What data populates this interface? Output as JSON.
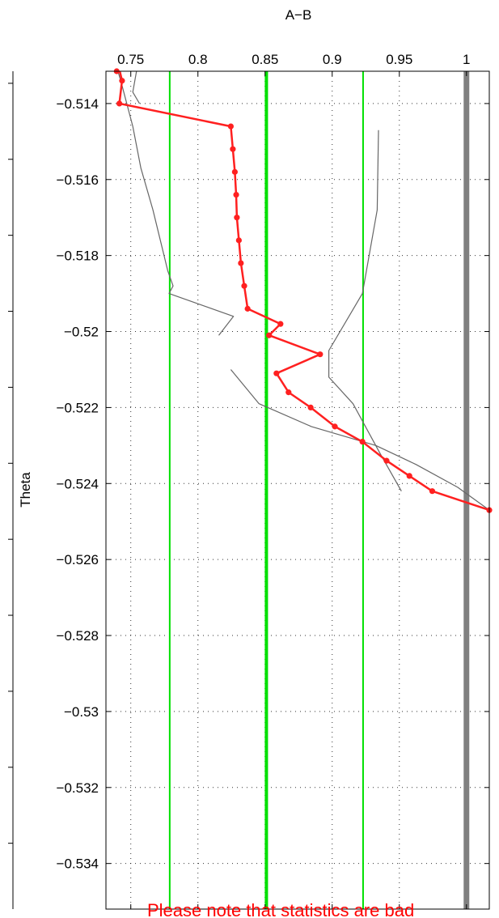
{
  "chart_data": {
    "type": "line",
    "title": "A−B",
    "ylabel": "Theta",
    "xlabel": "",
    "xlim": [
      0.7315,
      1.017
    ],
    "ylim": [
      -0.5352,
      -0.51315
    ],
    "x_axis_position": "top",
    "grid": true,
    "x_ticks": [
      0.75,
      0.8,
      0.85,
      0.9,
      0.95,
      1
    ],
    "x_tick_labels": [
      "0.75",
      "0.8",
      "0.85",
      "0.9",
      "0.95",
      "1"
    ],
    "y_ticks": [
      -0.514,
      -0.516,
      -0.518,
      -0.52,
      -0.522,
      -0.524,
      -0.526,
      -0.528,
      -0.53,
      -0.532,
      -0.534
    ],
    "y_tick_labels": [
      "−0.514",
      "−0.516",
      "−0.518",
      "−0.52",
      "−0.522",
      "−0.524",
      "−0.526",
      "−0.528",
      "−0.53",
      "−0.532",
      "−0.534"
    ],
    "vertical_lines": [
      {
        "x": 0.779,
        "color": "#00e000",
        "width": 2
      },
      {
        "x": 0.851,
        "color": "#00e000",
        "width": 4
      },
      {
        "x": 0.923,
        "color": "#00e000",
        "width": 2
      },
      {
        "x": 1.0,
        "color": "#808080",
        "width": 7
      }
    ],
    "series": [
      {
        "color": "#ff2020",
        "marker": "dot",
        "points": [
          [
            0.7395,
            -0.51315
          ],
          [
            0.7395,
            -0.5128
          ],
          [
            0.7435,
            -0.5134
          ],
          [
            0.7415,
            -0.514
          ],
          [
            0.8245,
            -0.5146
          ],
          [
            0.826,
            -0.5152
          ],
          [
            0.8275,
            -0.5158
          ],
          [
            0.8285,
            -0.5164
          ],
          [
            0.829,
            -0.517
          ],
          [
            0.8305,
            -0.5176
          ],
          [
            0.832,
            -0.5182
          ],
          [
            0.8345,
            -0.5188
          ],
          [
            0.837,
            -0.5194
          ],
          [
            0.8615,
            -0.5198
          ],
          [
            0.853,
            -0.5201
          ],
          [
            0.891,
            -0.5206
          ],
          [
            0.8585,
            -0.5211
          ],
          [
            0.8675,
            -0.5216
          ],
          [
            0.884,
            -0.522
          ],
          [
            0.902,
            -0.5225
          ],
          [
            0.9225,
            -0.5229
          ],
          [
            0.9405,
            -0.5234
          ],
          [
            0.9575,
            -0.5238
          ],
          [
            0.9745,
            -0.5242
          ],
          [
            1.017,
            -0.5247
          ]
        ]
      },
      {
        "color": "#666666",
        "marker": "none",
        "points": [
          [
            0.7375,
            -0.51315
          ],
          [
            0.7375,
            -0.5128
          ],
          [
            0.7425,
            -0.5134
          ],
          [
            0.7515,
            -0.5146
          ],
          [
            0.7575,
            -0.5157
          ],
          [
            0.7665,
            -0.5168
          ],
          [
            0.7775,
            -0.5184
          ],
          [
            0.7815,
            -0.5188
          ],
          [
            0.7785,
            -0.519
          ],
          [
            0.8265,
            -0.5196
          ],
          [
            0.8155,
            -0.5201
          ]
        ]
      },
      {
        "color": "#666666",
        "marker": "none",
        "points": [
          [
            0.758,
            -0.51315
          ],
          [
            0.7545,
            -0.5131
          ],
          [
            0.7515,
            -0.5137
          ],
          [
            0.7565,
            -0.514
          ]
        ]
      },
      {
        "color": "#666666",
        "marker": "none",
        "points": [
          [
            0.9345,
            -0.5147
          ],
          [
            0.9335,
            -0.5168
          ],
          [
            0.9225,
            -0.519
          ],
          [
            0.8975,
            -0.5205
          ],
          [
            0.8975,
            -0.5212
          ],
          [
            0.9155,
            -0.5219
          ],
          [
            0.9355,
            -0.5232
          ],
          [
            0.9515,
            -0.5242
          ]
        ]
      },
      {
        "color": "#666666",
        "marker": "none",
        "points": [
          [
            0.8245,
            -0.521
          ],
          [
            0.8455,
            -0.5219
          ],
          [
            0.8845,
            -0.5225
          ],
          [
            0.9325,
            -0.523
          ],
          [
            0.9625,
            -0.5235
          ],
          [
            0.9935,
            -0.5241
          ],
          [
            1.017,
            -0.5247
          ]
        ]
      }
    ],
    "annotation": "Please note that statistics are bad"
  }
}
